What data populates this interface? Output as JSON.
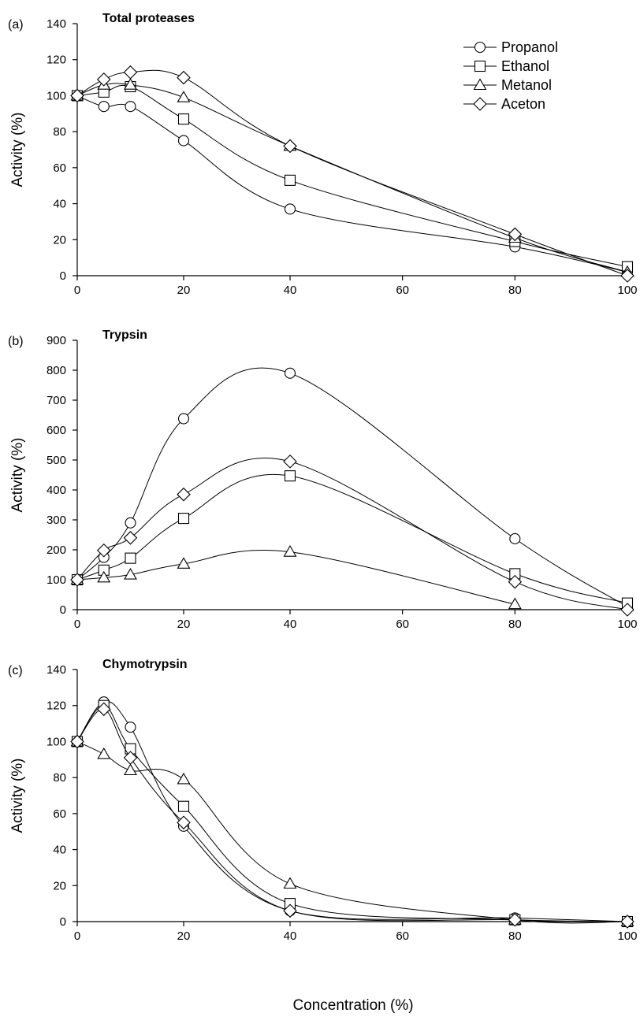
{
  "figure": {
    "xlabel": "Concentration (%)"
  },
  "legend": {
    "placement": "top-right of panel (a)",
    "entries": [
      {
        "name": "Propanol",
        "marker": "circle"
      },
      {
        "name": "Ethanol",
        "marker": "square"
      },
      {
        "name": "Metanol",
        "marker": "triangle"
      },
      {
        "name": "Aceton",
        "marker": "diamond"
      }
    ]
  },
  "chart_data": [
    {
      "type": "line",
      "panel_label": "(a)",
      "title": "Total proteases",
      "ylabel": "Activity (%)",
      "xlabel": "",
      "x": [
        0,
        5,
        10,
        20,
        40,
        80,
        100
      ],
      "x_ticks": [
        0,
        20,
        40,
        60,
        80,
        100
      ],
      "xlim": [
        0,
        100
      ],
      "x_scale": "piecewise: 0–40 and 40–100 drawn with equal width",
      "ylim": [
        0,
        140
      ],
      "y_ticks": [
        0,
        20,
        40,
        60,
        80,
        100,
        120,
        140
      ],
      "grid": false,
      "series": [
        {
          "name": "Propanol",
          "values": [
            100,
            94,
            94,
            75,
            37,
            16,
            2
          ]
        },
        {
          "name": "Ethanol",
          "values": [
            100,
            102,
            105,
            87,
            53,
            19,
            5
          ]
        },
        {
          "name": "Metanol",
          "values": [
            100,
            106,
            106,
            99,
            72,
            21,
            2
          ]
        },
        {
          "name": "Aceton",
          "values": [
            100,
            109,
            113,
            110,
            72,
            23,
            0
          ]
        }
      ]
    },
    {
      "type": "line",
      "panel_label": "(b)",
      "title": "Trypsin",
      "ylabel": "Activity (%)",
      "xlabel": "",
      "x": [
        0,
        5,
        10,
        20,
        40,
        80,
        100
      ],
      "x_ticks": [
        0,
        20,
        40,
        60,
        80,
        100
      ],
      "xlim": [
        0,
        100
      ],
      "x_scale": "piecewise: 0–40 and 40–100 drawn with equal width",
      "ylim": [
        0,
        900
      ],
      "y_ticks": [
        0,
        100,
        200,
        300,
        400,
        500,
        600,
        700,
        800,
        900
      ],
      "grid": false,
      "series": [
        {
          "name": "Propanol",
          "values": [
            100,
            175,
            290,
            638,
            790,
            237,
            10
          ]
        },
        {
          "name": "Ethanol",
          "values": [
            100,
            132,
            172,
            305,
            447,
            120,
            22
          ]
        },
        {
          "name": "Metanol",
          "values": [
            100,
            107,
            117,
            153,
            193,
            18,
            null
          ]
        },
        {
          "name": "Aceton",
          "values": [
            100,
            198,
            240,
            385,
            495,
            93,
            0
          ]
        }
      ]
    },
    {
      "type": "line",
      "panel_label": "(c)",
      "title": "Chymotrypsin",
      "ylabel": "Activity (%)",
      "xlabel": "Concentration (%)",
      "x": [
        0,
        5,
        10,
        20,
        40,
        80,
        100
      ],
      "x_ticks": [
        0,
        20,
        40,
        60,
        80,
        100
      ],
      "xlim": [
        0,
        100
      ],
      "x_scale": "piecewise: 0–40 and 40–100 drawn with equal width",
      "ylim": [
        0,
        140
      ],
      "y_ticks": [
        0,
        20,
        40,
        60,
        80,
        100,
        120,
        140
      ],
      "grid": false,
      "series": [
        {
          "name": "Propanol",
          "values": [
            100,
            122,
            108,
            53,
            6,
            2,
            0
          ]
        },
        {
          "name": "Ethanol",
          "values": [
            100,
            120,
            96,
            64,
            10,
            1,
            0
          ]
        },
        {
          "name": "Metanol",
          "values": [
            100,
            93,
            84,
            79,
            21,
            1,
            0
          ]
        },
        {
          "name": "Aceton",
          "values": [
            100,
            118,
            91,
            55,
            6,
            1,
            0
          ]
        }
      ]
    }
  ]
}
